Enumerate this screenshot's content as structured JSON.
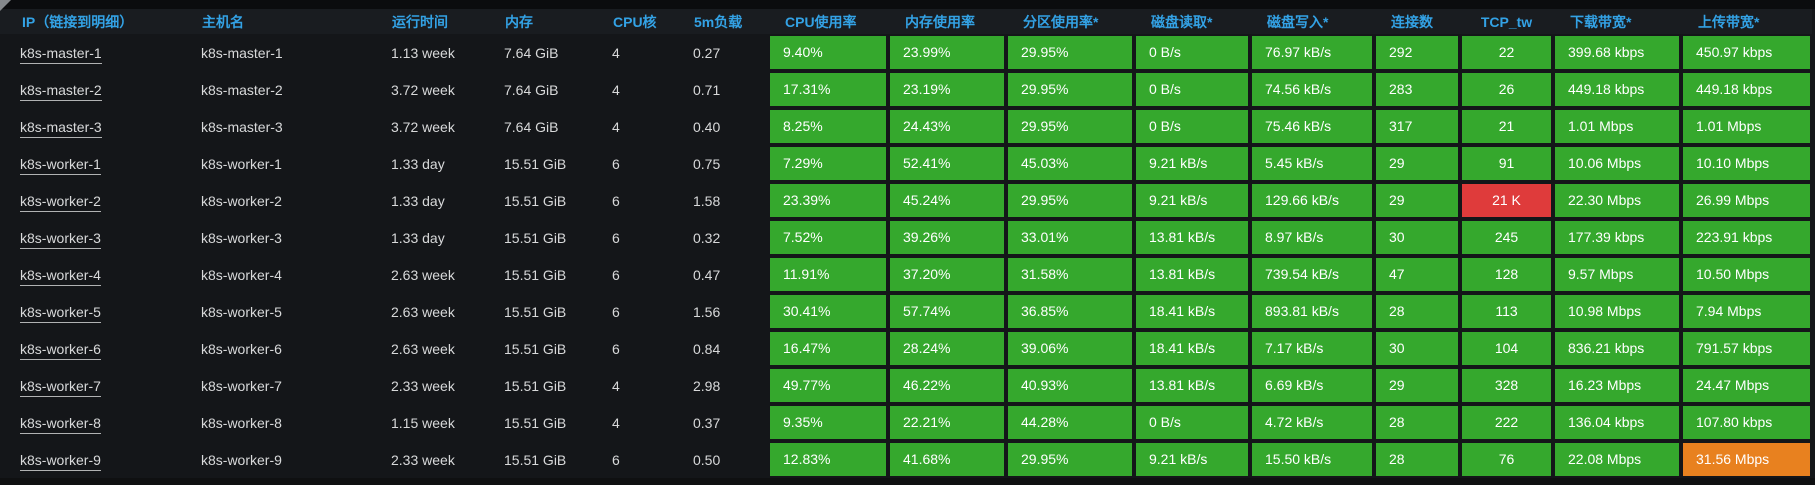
{
  "colors": {
    "green": "#35a82d",
    "red": "#df3b3b",
    "orange": "#e8811f",
    "header_blue": "#33a2e5",
    "body_text": "#d8d9da"
  },
  "table": {
    "columns": [
      {
        "id": "ip",
        "label": "IP（链接到明细）",
        "type": "link"
      },
      {
        "id": "hostname",
        "label": "主机名",
        "type": "text"
      },
      {
        "id": "uptime",
        "label": "运行时间",
        "type": "text"
      },
      {
        "id": "memory",
        "label": "内存",
        "type": "text"
      },
      {
        "id": "cpu_cores",
        "label": "CPU核",
        "type": "text"
      },
      {
        "id": "load5m",
        "label": "5m负载",
        "type": "text"
      },
      {
        "id": "cpu_usage",
        "label": "CPU使用率",
        "type": "metric"
      },
      {
        "id": "mem_usage",
        "label": "内存使用率",
        "type": "metric"
      },
      {
        "id": "partition_usage",
        "label": "分区使用率*",
        "type": "metric"
      },
      {
        "id": "disk_read",
        "label": "磁盘读取*",
        "type": "metric"
      },
      {
        "id": "disk_write",
        "label": "磁盘写入*",
        "type": "metric"
      },
      {
        "id": "connections",
        "label": "连接数",
        "type": "metric"
      },
      {
        "id": "tcp_tw",
        "label": "TCP_tw",
        "type": "metric",
        "align": "center"
      },
      {
        "id": "download_bw",
        "label": "下载带宽*",
        "type": "metric"
      },
      {
        "id": "upload_bw",
        "label": "上传带宽*",
        "type": "metric"
      }
    ],
    "rows": [
      {
        "values": {
          "ip": "k8s-master-1",
          "hostname": "k8s-master-1",
          "uptime": "1.13 week",
          "memory": "7.64 GiB",
          "cpu_cores": "4",
          "load5m": "0.27",
          "cpu_usage": "9.40%",
          "mem_usage": "23.99%",
          "partition_usage": "29.95%",
          "disk_read": "0 B/s",
          "disk_write": "76.97 kB/s",
          "connections": "292",
          "tcp_tw": "22",
          "download_bw": "399.68 kbps",
          "upload_bw": "450.97 kbps"
        }
      },
      {
        "values": {
          "ip": "k8s-master-2",
          "hostname": "k8s-master-2",
          "uptime": "3.72 week",
          "memory": "7.64 GiB",
          "cpu_cores": "4",
          "load5m": "0.71",
          "cpu_usage": "17.31%",
          "mem_usage": "23.19%",
          "partition_usage": "29.95%",
          "disk_read": "0 B/s",
          "disk_write": "74.56 kB/s",
          "connections": "283",
          "tcp_tw": "26",
          "download_bw": "449.18 kbps",
          "upload_bw": "449.18 kbps"
        }
      },
      {
        "values": {
          "ip": "k8s-master-3",
          "hostname": "k8s-master-3",
          "uptime": "3.72 week",
          "memory": "7.64 GiB",
          "cpu_cores": "4",
          "load5m": "0.40",
          "cpu_usage": "8.25%",
          "mem_usage": "24.43%",
          "partition_usage": "29.95%",
          "disk_read": "0 B/s",
          "disk_write": "75.46 kB/s",
          "connections": "317",
          "tcp_tw": "21",
          "download_bw": "1.01 Mbps",
          "upload_bw": "1.01 Mbps"
        }
      },
      {
        "values": {
          "ip": "k8s-worker-1",
          "hostname": "k8s-worker-1",
          "uptime": "1.33 day",
          "memory": "15.51 GiB",
          "cpu_cores": "6",
          "load5m": "0.75",
          "cpu_usage": "7.29%",
          "mem_usage": "52.41%",
          "partition_usage": "45.03%",
          "disk_read": "9.21 kB/s",
          "disk_write": "5.45 kB/s",
          "connections": "29",
          "tcp_tw": "91",
          "download_bw": "10.06 Mbps",
          "upload_bw": "10.10 Mbps"
        }
      },
      {
        "values": {
          "ip": "k8s-worker-2",
          "hostname": "k8s-worker-2",
          "uptime": "1.33 day",
          "memory": "15.51 GiB",
          "cpu_cores": "6",
          "load5m": "1.58",
          "cpu_usage": "23.39%",
          "mem_usage": "45.24%",
          "partition_usage": "29.95%",
          "disk_read": "9.21 kB/s",
          "disk_write": "129.66 kB/s",
          "connections": "29",
          "tcp_tw": "21 K",
          "download_bw": "22.30 Mbps",
          "upload_bw": "26.99 Mbps"
        },
        "cell_colors": {
          "tcp_tw": "red"
        }
      },
      {
        "values": {
          "ip": "k8s-worker-3",
          "hostname": "k8s-worker-3",
          "uptime": "1.33 day",
          "memory": "15.51 GiB",
          "cpu_cores": "6",
          "load5m": "0.32",
          "cpu_usage": "7.52%",
          "mem_usage": "39.26%",
          "partition_usage": "33.01%",
          "disk_read": "13.81 kB/s",
          "disk_write": "8.97 kB/s",
          "connections": "30",
          "tcp_tw": "245",
          "download_bw": "177.39 kbps",
          "upload_bw": "223.91 kbps"
        }
      },
      {
        "values": {
          "ip": "k8s-worker-4",
          "hostname": "k8s-worker-4",
          "uptime": "2.63 week",
          "memory": "15.51 GiB",
          "cpu_cores": "6",
          "load5m": "0.47",
          "cpu_usage": "11.91%",
          "mem_usage": "37.20%",
          "partition_usage": "31.58%",
          "disk_read": "13.81 kB/s",
          "disk_write": "739.54 kB/s",
          "connections": "47",
          "tcp_tw": "128",
          "download_bw": "9.57 Mbps",
          "upload_bw": "10.50 Mbps"
        }
      },
      {
        "values": {
          "ip": "k8s-worker-5",
          "hostname": "k8s-worker-5",
          "uptime": "2.63 week",
          "memory": "15.51 GiB",
          "cpu_cores": "6",
          "load5m": "1.56",
          "cpu_usage": "30.41%",
          "mem_usage": "57.74%",
          "partition_usage": "36.85%",
          "disk_read": "18.41 kB/s",
          "disk_write": "893.81 kB/s",
          "connections": "28",
          "tcp_tw": "113",
          "download_bw": "10.98 Mbps",
          "upload_bw": "7.94 Mbps"
        }
      },
      {
        "values": {
          "ip": "k8s-worker-6",
          "hostname": "k8s-worker-6",
          "uptime": "2.63 week",
          "memory": "15.51 GiB",
          "cpu_cores": "6",
          "load5m": "0.84",
          "cpu_usage": "16.47%",
          "mem_usage": "28.24%",
          "partition_usage": "39.06%",
          "disk_read": "18.41 kB/s",
          "disk_write": "7.17 kB/s",
          "connections": "30",
          "tcp_tw": "104",
          "download_bw": "836.21 kbps",
          "upload_bw": "791.57 kbps"
        }
      },
      {
        "values": {
          "ip": "k8s-worker-7",
          "hostname": "k8s-worker-7",
          "uptime": "2.33 week",
          "memory": "15.51 GiB",
          "cpu_cores": "4",
          "load5m": "2.98",
          "cpu_usage": "49.77%",
          "mem_usage": "46.22%",
          "partition_usage": "40.93%",
          "disk_read": "13.81 kB/s",
          "disk_write": "6.69 kB/s",
          "connections": "29",
          "tcp_tw": "328",
          "download_bw": "16.23 Mbps",
          "upload_bw": "24.47 Mbps"
        }
      },
      {
        "values": {
          "ip": "k8s-worker-8",
          "hostname": "k8s-worker-8",
          "uptime": "1.15 week",
          "memory": "15.51 GiB",
          "cpu_cores": "4",
          "load5m": "0.37",
          "cpu_usage": "9.35%",
          "mem_usage": "22.21%",
          "partition_usage": "44.28%",
          "disk_read": "0 B/s",
          "disk_write": "4.72 kB/s",
          "connections": "28",
          "tcp_tw": "222",
          "download_bw": "136.04 kbps",
          "upload_bw": "107.80 kbps"
        }
      },
      {
        "values": {
          "ip": "k8s-worker-9",
          "hostname": "k8s-worker-9",
          "uptime": "2.33 week",
          "memory": "15.51 GiB",
          "cpu_cores": "6",
          "load5m": "0.50",
          "cpu_usage": "12.83%",
          "mem_usage": "41.68%",
          "partition_usage": "29.95%",
          "disk_read": "9.21 kB/s",
          "disk_write": "15.50 kB/s",
          "connections": "28",
          "tcp_tw": "76",
          "download_bw": "22.08 Mbps",
          "upload_bw": "31.56 Mbps"
        },
        "cell_colors": {
          "upload_bw": "orange"
        }
      }
    ]
  }
}
